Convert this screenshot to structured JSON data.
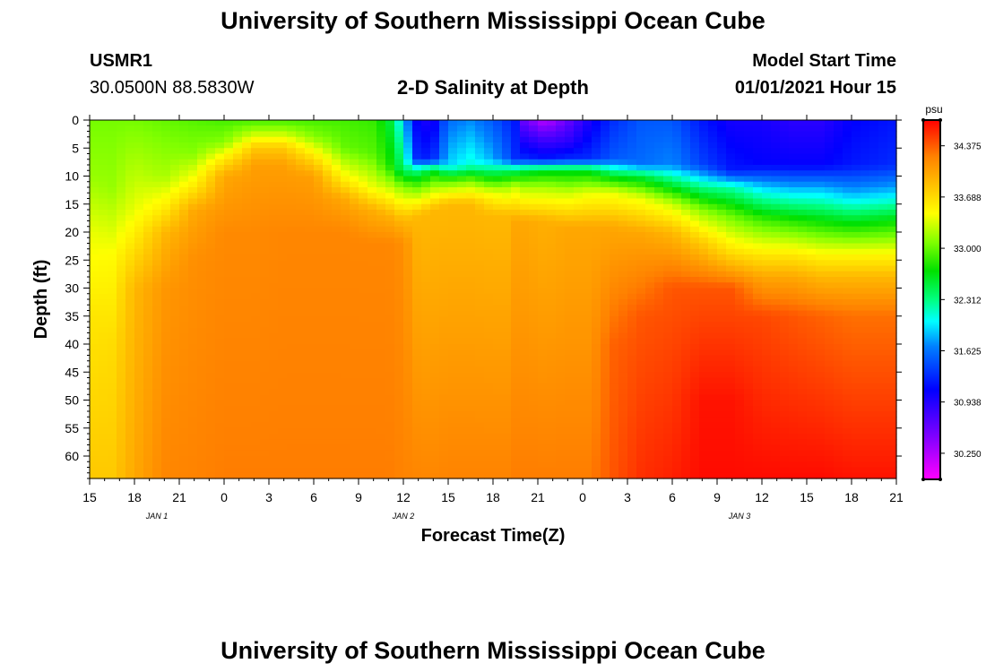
{
  "header": {
    "title": "University of Southern Mississippi Ocean Cube",
    "station_id": "USMR1",
    "coords": "30.0500N 88.5830W",
    "plot_title": "2-D Salinity at Depth",
    "model_start_label": "Model Start Time",
    "model_start_value": "01/01/2021 Hour 15"
  },
  "footer": {
    "title": "University of Southern Mississippi Ocean Cube"
  },
  "chart_data": {
    "type": "heatmap",
    "title": "2-D Salinity at Depth",
    "xlabel": "Forecast Time(Z)",
    "ylabel": "Depth (ft)",
    "x_ticks": [
      "15",
      "18",
      "21",
      "0",
      "3",
      "6",
      "9",
      "12",
      "15",
      "18",
      "21",
      "0",
      "3",
      "6",
      "9",
      "12",
      "15",
      "18",
      "21"
    ],
    "x_range_hours": [
      0,
      54
    ],
    "date_labels": [
      {
        "label": "JAN 1",
        "hour": 4.5
      },
      {
        "label": "JAN 2",
        "hour": 21
      },
      {
        "label": "JAN 3",
        "hour": 43.5
      }
    ],
    "y_ticks": [
      0,
      5,
      10,
      15,
      20,
      25,
      30,
      35,
      40,
      45,
      50,
      55,
      60
    ],
    "ylim": [
      0,
      64
    ],
    "colorbar": {
      "unit": "psu",
      "range": [
        29.9,
        34.72
      ],
      "ticks": [
        "34.375",
        "33.688",
        "33.000",
        "32.312",
        "31.625",
        "30.938",
        "30.250"
      ]
    },
    "profiles": [
      {
        "hour": 0,
        "values": [
          [
            0,
            33.05
          ],
          [
            10,
            33.15
          ],
          [
            20,
            33.4
          ],
          [
            35,
            33.62
          ],
          [
            64,
            33.8
          ]
        ]
      },
      {
        "hour": 1.5,
        "values": [
          [
            0,
            33.05
          ],
          [
            12,
            33.15
          ],
          [
            25,
            33.5
          ],
          [
            40,
            33.68
          ],
          [
            64,
            33.8
          ]
        ]
      },
      {
        "hour": 3,
        "values": [
          [
            0,
            33.05
          ],
          [
            16,
            33.4
          ],
          [
            24,
            33.7
          ],
          [
            30,
            33.9
          ],
          [
            64,
            34.0
          ]
        ]
      },
      {
        "hour": 5,
        "values": [
          [
            0,
            33.0
          ],
          [
            10,
            33.2
          ],
          [
            16,
            33.6
          ],
          [
            20,
            33.9
          ],
          [
            30,
            34.1
          ],
          [
            64,
            34.2
          ]
        ]
      },
      {
        "hour": 7,
        "values": [
          [
            0,
            32.95
          ],
          [
            6,
            33.1
          ],
          [
            12,
            33.6
          ],
          [
            16,
            34.0
          ],
          [
            25,
            34.15
          ],
          [
            64,
            34.22
          ]
        ]
      },
      {
        "hour": 9,
        "values": [
          [
            0,
            32.9
          ],
          [
            4,
            33.1
          ],
          [
            7,
            33.6
          ],
          [
            10,
            34.0
          ],
          [
            20,
            34.18
          ],
          [
            64,
            34.25
          ]
        ]
      },
      {
        "hour": 11,
        "values": [
          [
            0,
            32.9
          ],
          [
            2,
            33.2
          ],
          [
            5,
            33.8
          ],
          [
            8,
            34.05
          ],
          [
            20,
            34.18
          ],
          [
            64,
            34.25
          ]
        ]
      },
      {
        "hour": 13,
        "values": [
          [
            0,
            32.9
          ],
          [
            2,
            33.2
          ],
          [
            5,
            33.8
          ],
          [
            8,
            34.05
          ],
          [
            20,
            34.2
          ],
          [
            64,
            34.25
          ]
        ]
      },
      {
        "hour": 15,
        "values": [
          [
            0,
            32.9
          ],
          [
            3,
            33.1
          ],
          [
            7,
            33.7
          ],
          [
            10,
            34.05
          ],
          [
            20,
            34.2
          ],
          [
            64,
            34.25
          ]
        ]
      },
      {
        "hour": 17,
        "values": [
          [
            0,
            32.9
          ],
          [
            5,
            33.0
          ],
          [
            10,
            33.5
          ],
          [
            14,
            34.0
          ],
          [
            20,
            34.2
          ],
          [
            64,
            34.25
          ]
        ]
      },
      {
        "hour": 19,
        "values": [
          [
            0,
            32.85
          ],
          [
            6,
            32.95
          ],
          [
            12,
            33.4
          ],
          [
            16,
            33.95
          ],
          [
            22,
            34.2
          ],
          [
            64,
            34.25
          ]
        ]
      },
      {
        "hour": 20,
        "values": [
          [
            0,
            32.6
          ],
          [
            8,
            32.8
          ],
          [
            12,
            33.3
          ],
          [
            17,
            33.95
          ],
          [
            22,
            34.2
          ],
          [
            64,
            34.25
          ]
        ]
      },
      {
        "hour": 21,
        "values": [
          [
            0,
            31.9
          ],
          [
            9,
            32.4
          ],
          [
            12,
            33.1
          ],
          [
            18,
            33.9
          ],
          [
            22,
            34.15
          ],
          [
            64,
            34.22
          ]
        ]
      },
      {
        "hour": 22,
        "values": [
          [
            0,
            31.0
          ],
          [
            7,
            31.2
          ],
          [
            9,
            32.3
          ],
          [
            12,
            33.0
          ],
          [
            17,
            33.9
          ],
          [
            64,
            34.2
          ]
        ]
      },
      {
        "hour": 23,
        "values": [
          [
            0,
            31.0
          ],
          [
            7,
            31.3
          ],
          [
            9,
            32.6
          ],
          [
            12,
            33.2
          ],
          [
            16,
            33.9
          ],
          [
            64,
            34.2
          ]
        ]
      },
      {
        "hour": 24,
        "values": [
          [
            0,
            31.6
          ],
          [
            8,
            31.9
          ],
          [
            11,
            33.0
          ],
          [
            15,
            33.9
          ],
          [
            64,
            34.22
          ]
        ]
      },
      {
        "hour": 25.5,
        "values": [
          [
            0,
            31.7
          ],
          [
            8,
            32.1
          ],
          [
            11,
            33.1
          ],
          [
            15,
            33.9
          ],
          [
            64,
            34.22
          ]
        ]
      },
      {
        "hour": 27,
        "values": [
          [
            0,
            31.5
          ],
          [
            7,
            31.8
          ],
          [
            10,
            32.6
          ],
          [
            13,
            33.4
          ],
          [
            17,
            33.9
          ],
          [
            64,
            34.22
          ]
        ]
      },
      {
        "hour": 28,
        "values": [
          [
            0,
            31.3
          ],
          [
            7,
            31.5
          ],
          [
            9,
            32.4
          ],
          [
            12,
            33.2
          ],
          [
            17,
            33.9
          ],
          [
            64,
            34.22
          ]
        ]
      },
      {
        "hour": 28.5,
        "values": [
          [
            0,
            31.2
          ],
          [
            7,
            31.3
          ],
          [
            9,
            32.4
          ],
          [
            12,
            33.3
          ],
          [
            18,
            34.0
          ],
          [
            64,
            34.25
          ]
        ]
      },
      {
        "hour": 29,
        "values": [
          [
            0,
            30.6
          ],
          [
            3,
            30.9
          ],
          [
            7,
            31.3
          ],
          [
            9,
            32.5
          ],
          [
            12,
            33.2
          ],
          [
            18,
            34.0
          ],
          [
            64,
            34.25
          ]
        ]
      },
      {
        "hour": 30.5,
        "values": [
          [
            0,
            30.2
          ],
          [
            3,
            30.7
          ],
          [
            7,
            31.2
          ],
          [
            9,
            32.6
          ],
          [
            12,
            33.2
          ],
          [
            18,
            33.95
          ],
          [
            64,
            34.25
          ]
        ]
      },
      {
        "hour": 32,
        "values": [
          [
            0,
            30.6
          ],
          [
            4,
            30.9
          ],
          [
            7,
            31.3
          ],
          [
            9,
            32.6
          ],
          [
            13,
            33.3
          ],
          [
            19,
            34.0
          ],
          [
            64,
            34.25
          ]
        ]
      },
      {
        "hour": 33.5,
        "values": [
          [
            0,
            31.0
          ],
          [
            7,
            31.3
          ],
          [
            9,
            32.6
          ],
          [
            13,
            33.4
          ],
          [
            19,
            34.0
          ],
          [
            64,
            34.25
          ]
        ]
      },
      {
        "hour": 35,
        "values": [
          [
            0,
            31.3
          ],
          [
            7,
            31.5
          ],
          [
            10,
            32.6
          ],
          [
            13,
            33.4
          ],
          [
            19,
            34.0
          ],
          [
            40,
            34.35
          ],
          [
            64,
            34.4
          ]
        ]
      },
      {
        "hour": 37,
        "values": [
          [
            0,
            31.5
          ],
          [
            8,
            31.6
          ],
          [
            10,
            32.5
          ],
          [
            14,
            33.4
          ],
          [
            20,
            34.0
          ],
          [
            35,
            34.4
          ],
          [
            64,
            34.55
          ]
        ]
      },
      {
        "hour": 39,
        "values": [
          [
            0,
            31.5
          ],
          [
            8,
            31.7
          ],
          [
            11,
            32.4
          ],
          [
            15,
            33.3
          ],
          [
            20,
            33.9
          ],
          [
            30,
            34.4
          ],
          [
            64,
            34.6
          ]
        ]
      },
      {
        "hour": 41,
        "values": [
          [
            0,
            31.2
          ],
          [
            8,
            31.4
          ],
          [
            12,
            32.3
          ],
          [
            16,
            33.1
          ],
          [
            22,
            33.8
          ],
          [
            30,
            34.4
          ],
          [
            50,
            34.65
          ],
          [
            64,
            34.68
          ]
        ]
      },
      {
        "hour": 43,
        "values": [
          [
            0,
            31.0
          ],
          [
            9,
            31.2
          ],
          [
            12,
            32.2
          ],
          [
            17,
            33.0
          ],
          [
            24,
            33.7
          ],
          [
            30,
            34.4
          ],
          [
            50,
            34.65
          ],
          [
            64,
            34.68
          ]
        ]
      },
      {
        "hour": 45,
        "values": [
          [
            0,
            31.0
          ],
          [
            8,
            31.1
          ],
          [
            12,
            31.9
          ],
          [
            18,
            32.9
          ],
          [
            24,
            33.6
          ],
          [
            28,
            34.0
          ],
          [
            35,
            34.45
          ],
          [
            64,
            34.68
          ]
        ]
      },
      {
        "hour": 47,
        "values": [
          [
            0,
            30.9
          ],
          [
            8,
            31.1
          ],
          [
            12,
            31.8
          ],
          [
            18,
            32.8
          ],
          [
            24,
            33.6
          ],
          [
            28,
            34.0
          ],
          [
            35,
            34.4
          ],
          [
            64,
            34.68
          ]
        ]
      },
      {
        "hour": 49,
        "values": [
          [
            0,
            30.9
          ],
          [
            8,
            31.1
          ],
          [
            12,
            31.8
          ],
          [
            18,
            32.7
          ],
          [
            24,
            33.5
          ],
          [
            28,
            33.9
          ],
          [
            35,
            34.35
          ],
          [
            64,
            34.68
          ]
        ]
      },
      {
        "hour": 51,
        "values": [
          [
            0,
            31.1
          ],
          [
            8,
            31.2
          ],
          [
            13,
            31.8
          ],
          [
            18,
            32.6
          ],
          [
            24,
            33.5
          ],
          [
            28,
            33.9
          ],
          [
            35,
            34.3
          ],
          [
            64,
            34.65
          ]
        ]
      },
      {
        "hour": 54,
        "values": [
          [
            0,
            31.2
          ],
          [
            8,
            31.3
          ],
          [
            13,
            31.9
          ],
          [
            18,
            32.7
          ],
          [
            24,
            33.5
          ],
          [
            28,
            33.9
          ],
          [
            35,
            34.3
          ],
          [
            64,
            34.65
          ]
        ]
      }
    ]
  }
}
